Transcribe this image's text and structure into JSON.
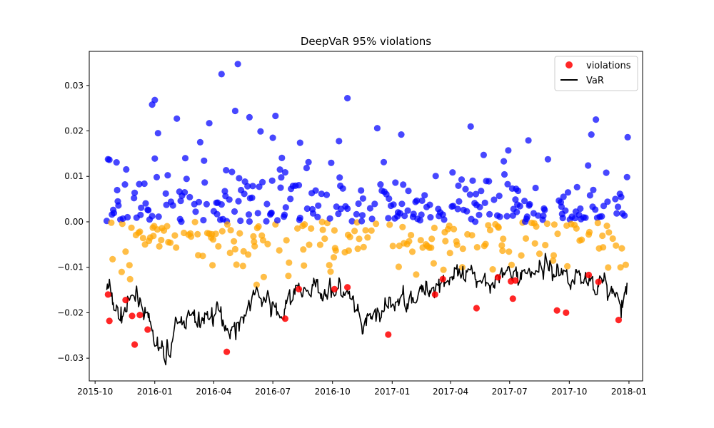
{
  "chart_data": {
    "type": "scatter",
    "title": "DeepVaR 95% violations",
    "xlabel": "",
    "ylabel": "",
    "x_axis": "date",
    "xlim": [
      "2015-09-22",
      "2018-01-22"
    ],
    "ylim": [
      -0.035,
      0.0375
    ],
    "x_ticks": [
      "2015-10",
      "2016-01",
      "2016-04",
      "2016-07",
      "2016-10",
      "2017-01",
      "2017-04",
      "2017-07",
      "2017-10",
      "2018-01"
    ],
    "y_ticks": [
      -0.03,
      -0.02,
      -0.01,
      0.0,
      0.01,
      0.02,
      0.03
    ],
    "y_tick_labels": [
      "−0.03",
      "−0.02",
      "−0.01",
      "0.00",
      "0.01",
      "0.02",
      "0.03"
    ],
    "grid": false,
    "legend": {
      "placement": "top-right",
      "entries": [
        {
          "label": "violations",
          "marker": "dot",
          "color": "#ff0000"
        },
        {
          "label": "VaR",
          "marker": "line",
          "color": "#000000"
        }
      ]
    },
    "colors": {
      "positive_returns": "#0000ff",
      "negative_returns": "#ffa500",
      "violations": "#ff0000",
      "var_line": "#000000"
    },
    "var_series": {
      "name": "VaR",
      "anchors": [
        [
          "2015-10-20",
          -0.0145
        ],
        [
          "2015-10-26",
          -0.017
        ],
        [
          "2015-11-02",
          -0.019
        ],
        [
          "2015-11-09",
          -0.021
        ],
        [
          "2015-11-16",
          -0.0195
        ],
        [
          "2015-11-23",
          -0.0185
        ],
        [
          "2015-11-30",
          -0.017
        ],
        [
          "2015-12-07",
          -0.016
        ],
        [
          "2015-12-14",
          -0.018
        ],
        [
          "2015-12-21",
          -0.023
        ],
        [
          "2015-12-28",
          -0.025
        ],
        [
          "2016-01-04",
          -0.027
        ],
        [
          "2016-01-11",
          -0.029
        ],
        [
          "2016-01-18",
          -0.0285
        ],
        [
          "2016-01-25",
          -0.027
        ],
        [
          "2016-02-01",
          -0.024
        ],
        [
          "2016-02-08",
          -0.023
        ],
        [
          "2016-02-15",
          -0.021
        ],
        [
          "2016-02-22",
          -0.021
        ],
        [
          "2016-03-01",
          -0.022
        ],
        [
          "2016-03-15",
          -0.0215
        ],
        [
          "2016-04-01",
          -0.02
        ],
        [
          "2016-04-15",
          -0.021
        ],
        [
          "2016-05-01",
          -0.024
        ],
        [
          "2016-05-15",
          -0.021
        ],
        [
          "2016-06-01",
          -0.016
        ],
        [
          "2016-06-15",
          -0.017
        ],
        [
          "2016-07-01",
          -0.019
        ],
        [
          "2016-07-15",
          -0.021
        ],
        [
          "2016-08-01",
          -0.016
        ],
        [
          "2016-08-15",
          -0.015
        ],
        [
          "2016-09-01",
          -0.015
        ],
        [
          "2016-09-15",
          -0.0145
        ],
        [
          "2016-10-01",
          -0.015
        ],
        [
          "2016-10-15",
          -0.015
        ],
        [
          "2016-11-01",
          -0.018
        ],
        [
          "2016-11-15",
          -0.024
        ],
        [
          "2016-12-01",
          -0.021
        ],
        [
          "2016-12-15",
          -0.02
        ],
        [
          "2017-01-01",
          -0.0185
        ],
        [
          "2017-01-15",
          -0.017
        ],
        [
          "2017-02-01",
          -0.016
        ],
        [
          "2017-02-15",
          -0.016
        ],
        [
          "2017-03-01",
          -0.0145
        ],
        [
          "2017-03-15",
          -0.013
        ],
        [
          "2017-04-01",
          -0.012
        ],
        [
          "2017-04-15",
          -0.013
        ],
        [
          "2017-05-01",
          -0.0125
        ],
        [
          "2017-05-15",
          -0.012
        ],
        [
          "2017-06-01",
          -0.0125
        ],
        [
          "2017-06-15",
          -0.0125
        ],
        [
          "2017-07-01",
          -0.0115
        ],
        [
          "2017-07-15",
          -0.0115
        ],
        [
          "2017-08-01",
          -0.011
        ],
        [
          "2017-08-15",
          -0.01
        ],
        [
          "2017-09-01",
          -0.01
        ],
        [
          "2017-09-15",
          -0.011
        ],
        [
          "2017-10-01",
          -0.0115
        ],
        [
          "2017-10-15",
          -0.012
        ],
        [
          "2017-11-01",
          -0.0125
        ],
        [
          "2017-11-15",
          -0.0135
        ],
        [
          "2017-12-01",
          -0.015
        ],
        [
          "2017-12-15",
          -0.017
        ],
        [
          "2017-12-22",
          -0.0195
        ],
        [
          "2017-12-29",
          -0.015
        ]
      ]
    },
    "violations": {
      "name": "violations",
      "points": [
        [
          "2015-10-23",
          -0.0218
        ],
        [
          "2015-10-21",
          -0.016
        ],
        [
          "2015-11-17",
          -0.0172
        ],
        [
          "2015-11-27",
          -0.0207
        ],
        [
          "2015-12-01",
          -0.027
        ],
        [
          "2015-12-09",
          -0.0205
        ],
        [
          "2015-12-21",
          -0.0237
        ],
        [
          "2016-04-21",
          -0.0286
        ],
        [
          "2016-07-20",
          -0.0213
        ],
        [
          "2016-08-10",
          -0.0148
        ],
        [
          "2016-10-04",
          -0.0148
        ],
        [
          "2016-10-24",
          -0.0144
        ],
        [
          "2016-12-26",
          -0.0248
        ],
        [
          "2017-03-08",
          -0.016
        ],
        [
          "2017-03-20",
          -0.0126
        ],
        [
          "2017-05-11",
          -0.019
        ],
        [
          "2017-06-13",
          -0.0122
        ],
        [
          "2017-07-03",
          -0.0131
        ],
        [
          "2017-07-06",
          -0.0169
        ],
        [
          "2017-07-10",
          -0.0129
        ],
        [
          "2017-09-12",
          -0.0195
        ],
        [
          "2017-09-26",
          -0.02
        ],
        [
          "2017-10-31",
          -0.0117
        ],
        [
          "2017-11-15",
          -0.0132
        ],
        [
          "2017-12-16",
          -0.0216
        ]
      ]
    },
    "returns_scatter": {
      "name": "returns",
      "start_date": "2015-10-19",
      "end_date": "2017-12-29",
      "seed": 7,
      "notable_points": [
        [
          "2016-04-13",
          0.0325
        ],
        [
          "2016-05-08",
          0.0347
        ],
        [
          "2016-10-24",
          0.0272
        ],
        [
          "2016-01-01",
          0.0268
        ],
        [
          "2015-12-28",
          0.0258
        ],
        [
          "2016-05-04",
          0.0244
        ],
        [
          "2016-07-05",
          0.0233
        ],
        [
          "2016-02-04",
          0.0227
        ],
        [
          "2017-11-11",
          0.0225
        ],
        [
          "2016-03-25",
          0.0217
        ],
        [
          "2016-12-09",
          0.0206
        ],
        [
          "2016-06-12",
          0.0199
        ],
        [
          "2017-01-15",
          0.0192
        ],
        [
          "2017-11-04",
          0.0192
        ],
        [
          "2017-12-30",
          0.0186
        ],
        [
          "2016-07-01",
          0.0185
        ],
        [
          "2016-05-26",
          0.023
        ],
        [
          "2017-07-30",
          0.0179
        ],
        [
          "2016-08-12",
          0.0174
        ]
      ]
    }
  }
}
